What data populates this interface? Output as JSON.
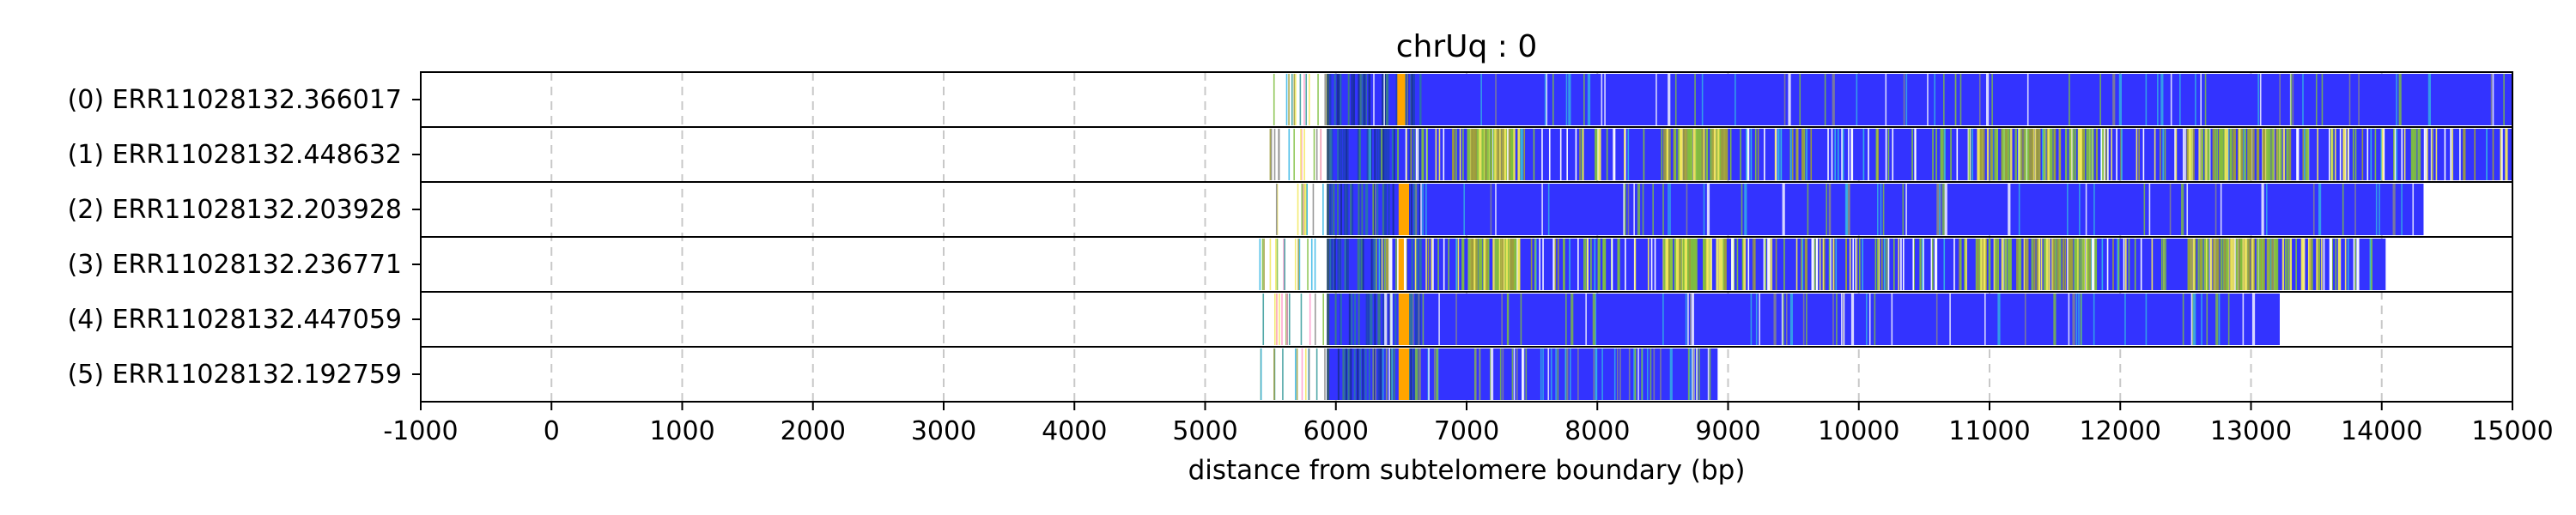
{
  "chart_data": {
    "type": "bar",
    "title": "chrUq : 0",
    "xlabel": "distance from subtelomere boundary (bp)",
    "ylabel": "",
    "xlim": [
      -1000,
      15000
    ],
    "xticks": [
      -1000,
      0,
      1000,
      2000,
      3000,
      4000,
      5000,
      6000,
      7000,
      8000,
      9000,
      10000,
      11000,
      12000,
      13000,
      14000,
      15000
    ],
    "grid": "vertical dashed",
    "colors": {
      "repeat": "#3333ff",
      "highlight": "#ffa500",
      "variant_green": "#7fbf3f",
      "variant_cyan": "#33b5e5",
      "variant_yellow": "#f2e85c",
      "variant_white": "#ffffff",
      "variant_pink": "#ff99cc",
      "variant_olive": "#9c9c3c",
      "variant_teal": "#339999",
      "variant_gray": "#888888"
    },
    "reads": [
      {
        "label": "(0) ERR11028132.366017",
        "prefix_start": 5500,
        "repeat_start": 5950,
        "end": 15000,
        "highlight": [
          6470,
          6530
        ],
        "variant_density": "low"
      },
      {
        "label": "(1) ERR11028132.448632",
        "prefix_start": 5400,
        "repeat_start": 5950,
        "end": 15000,
        "highlight": null,
        "variant_density": "high"
      },
      {
        "label": "(2) ERR11028132.203928",
        "prefix_start": 5450,
        "repeat_start": 5950,
        "end": 14320,
        "highlight": [
          6480,
          6560
        ],
        "variant_density": "low"
      },
      {
        "label": "(3) ERR11028132.236771",
        "prefix_start": 5400,
        "repeat_start": 5950,
        "end": 14030,
        "highlight": [
          6480,
          6520
        ],
        "variant_density": "high"
      },
      {
        "label": "(4) ERR11028132.447059",
        "prefix_start": 5420,
        "repeat_start": 5950,
        "end": 13220,
        "highlight": [
          6480,
          6560
        ],
        "variant_density": "low"
      },
      {
        "label": "(5) ERR11028132.192759",
        "prefix_start": 5420,
        "repeat_start": 5950,
        "end": 8920,
        "highlight": [
          6480,
          6560
        ],
        "variant_density": "low"
      }
    ]
  }
}
